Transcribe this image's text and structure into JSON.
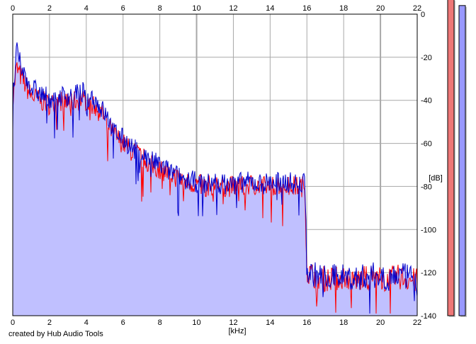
{
  "chart_data": {
    "type": "area",
    "title": "",
    "xlabel": "[kHz]",
    "ylabel": "[dB]",
    "xlim": [
      0,
      22
    ],
    "ylim": [
      -140,
      0
    ],
    "x_ticks": [
      "0",
      "2",
      "4",
      "6",
      "8",
      "10",
      "12",
      "14",
      "16",
      "18",
      "20",
      "22"
    ],
    "y_ticks": [
      "0",
      "-20",
      "-40",
      "-60",
      "-80",
      "-100",
      "-120",
      "-140"
    ],
    "grid": true,
    "series": [
      {
        "color": "#ff0000",
        "x": [
          0,
          0.2,
          0.5,
          1,
          1.5,
          2,
          2.5,
          3,
          3.5,
          4,
          4.5,
          5,
          5.5,
          6,
          6.5,
          7,
          7.5,
          8,
          8.5,
          9,
          9.5,
          10,
          10.5,
          11,
          11.5,
          12,
          12.5,
          13,
          13.5,
          14,
          14.5,
          15,
          15.5,
          15.9,
          16,
          16.5,
          17,
          17.5,
          18,
          18.5,
          19,
          19.5,
          20,
          20.5,
          21,
          21.5,
          22
        ],
        "y": [
          -40,
          -25,
          -30,
          -38,
          -40,
          -42,
          -40,
          -41,
          -40,
          -40,
          -43,
          -48,
          -56,
          -60,
          -64,
          -66,
          -70,
          -72,
          -74,
          -76,
          -78,
          -79,
          -80,
          -79,
          -80,
          -80,
          -80,
          -79,
          -80,
          -80,
          -79,
          -80,
          -80,
          -80,
          -120,
          -122,
          -123,
          -123,
          -122,
          -124,
          -123,
          -122,
          -123,
          -123,
          -122,
          -123,
          -124
        ]
      },
      {
        "color": "#0000cc",
        "x": [
          0,
          0.2,
          0.5,
          1,
          1.5,
          2,
          2.5,
          3,
          3.5,
          4,
          4.5,
          5,
          5.5,
          6,
          6.5,
          7,
          7.5,
          8,
          8.5,
          9,
          9.5,
          10,
          10.5,
          11,
          11.5,
          12,
          12.5,
          13,
          13.5,
          14,
          14.5,
          15,
          15.5,
          15.9,
          16,
          16.5,
          17,
          17.5,
          18,
          18.5,
          19,
          19.5,
          20,
          20.5,
          21,
          21.5,
          22
        ],
        "y": [
          -40,
          -17,
          -26,
          -34,
          -37,
          -39,
          -38,
          -38,
          -37,
          -36,
          -40,
          -46,
          -54,
          -58,
          -62,
          -65,
          -68,
          -70,
          -73,
          -75,
          -77,
          -78,
          -79,
          -78,
          -79,
          -79,
          -78,
          -78,
          -79,
          -78,
          -78,
          -78,
          -79,
          -78,
          -120,
          -121,
          -122,
          -122,
          -121,
          -123,
          -122,
          -121,
          -122,
          -122,
          -121,
          -122,
          -123
        ]
      }
    ],
    "fill_color": "#c0c0ff",
    "level_meters": [
      {
        "color": "#ee7777",
        "level_db": -7
      },
      {
        "color": "#9999ff",
        "level_db": -4
      }
    ]
  },
  "footer": {
    "credit": "created by Hub Audio Tools"
  }
}
